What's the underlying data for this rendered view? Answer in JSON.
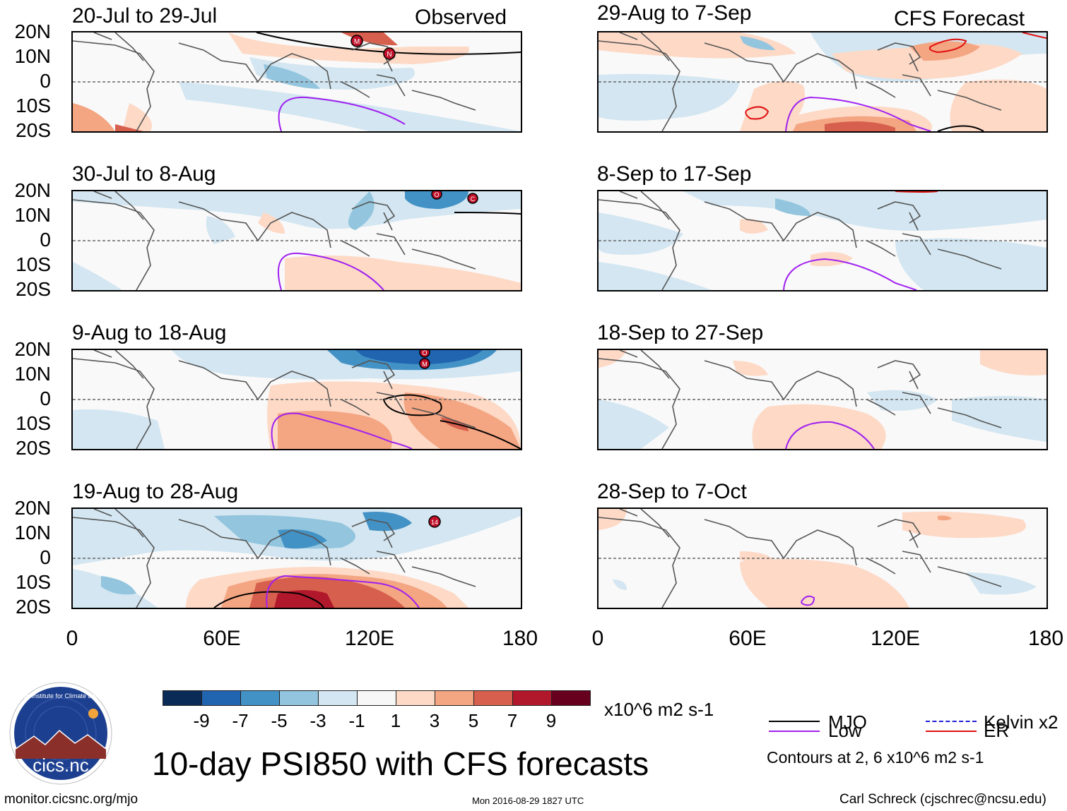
{
  "title": "10-day PSI850 with CFS forecasts",
  "panel_labels": {
    "observed": "Observed",
    "forecast": "CFS Forecast"
  },
  "lat_labels": [
    "20N",
    "10N",
    "0",
    "10S",
    "20S"
  ],
  "lon_labels": [
    "0",
    "60E",
    "120E",
    "180"
  ],
  "observed_panels": [
    {
      "title": "20-Jul to 29-Jul"
    },
    {
      "title": "30-Jul to 8-Aug"
    },
    {
      "title": "9-Aug to 18-Aug"
    },
    {
      "title": "19-Aug to 28-Aug"
    }
  ],
  "forecast_panels": [
    {
      "title": "29-Aug to 7-Sep"
    },
    {
      "title": "8-Sep to 17-Sep"
    },
    {
      "title": "18-Sep to 27-Sep"
    },
    {
      "title": "28-Sep to 7-Oct"
    }
  ],
  "colorbar": {
    "colors": [
      "#0b2b57",
      "#2164b0",
      "#4392c6",
      "#93c5de",
      "#d3e6f1",
      "#f7f7f7",
      "#fdd9c6",
      "#f4a582",
      "#d6604d",
      "#b2182b",
      "#67001f"
    ],
    "ticks": [
      "-9",
      "-7",
      "-5",
      "-3",
      "-1",
      "1",
      "3",
      "5",
      "7",
      "9"
    ],
    "units": "x10^6 m2 s-1"
  },
  "legend": {
    "items": [
      {
        "label": "MJO",
        "color": "#000000"
      },
      {
        "label": "Kelvin x2",
        "color": "#1f1fd6"
      },
      {
        "label": "Low",
        "color": "#a020f0"
      },
      {
        "label": "ER",
        "color": "#e01010"
      }
    ],
    "note": "Contours at 2, 6 x10^6 m2 s-1"
  },
  "storm_markers": [
    {
      "panel": "observed-1",
      "label": "M"
    },
    {
      "panel": "observed-1",
      "label": "N"
    },
    {
      "panel": "observed-2",
      "label": "O"
    },
    {
      "panel": "observed-2",
      "label": "C"
    },
    {
      "panel": "observed-3",
      "label": "O"
    },
    {
      "panel": "observed-3",
      "label": "M"
    },
    {
      "panel": "observed-4",
      "label": "14"
    }
  ],
  "footer": {
    "url": "monitor.cicsnc.org/mjo",
    "timestamp": "Mon 2016-08-29 1827 UTC",
    "author": "Carl Schreck (cjschrec@ncsu.edu)"
  },
  "logo": {
    "text": "cics.nc",
    "ring_text": "Cooperative Institute for Climate and Satellites",
    "colors": {
      "bg": "#1d3f8f",
      "sun": "#f3a53b",
      "mountain": "#8a2f2a"
    }
  }
}
